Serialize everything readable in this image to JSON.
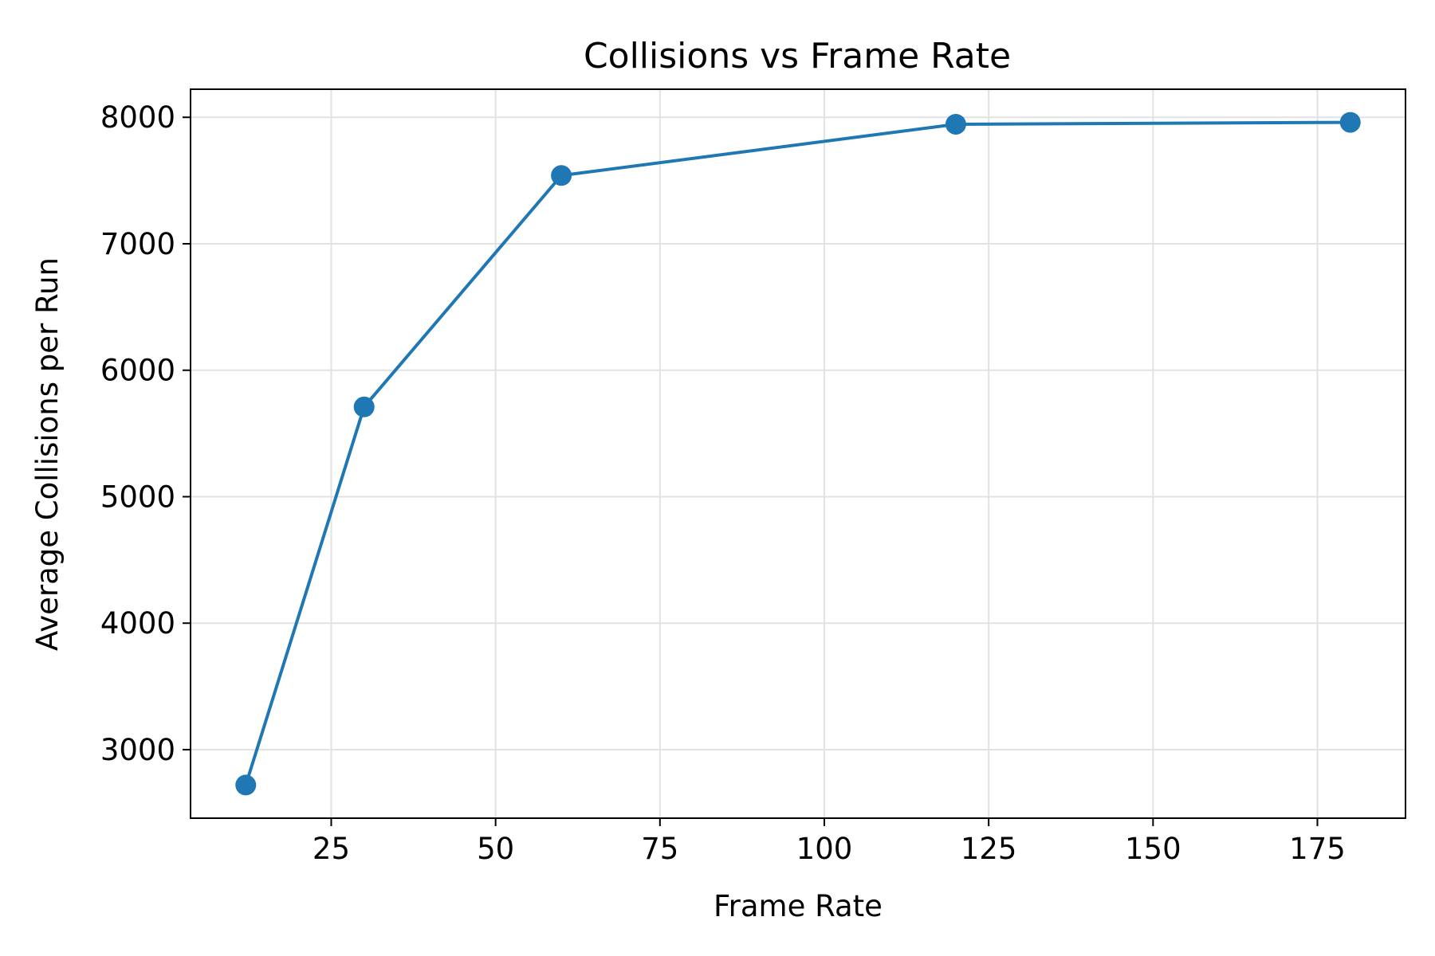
{
  "chart_data": {
    "type": "line",
    "title": "Collisions vs Frame Rate",
    "xlabel": "Frame Rate",
    "ylabel": "Average Collisions per Run",
    "x": [
      12,
      30,
      60,
      120,
      180
    ],
    "series": [
      {
        "values": [
          2720,
          5710,
          7540,
          7945,
          7960
        ],
        "color": "#1f77b4",
        "marker": "circle"
      }
    ],
    "xlim": [
      3.6,
      188.4
    ],
    "ylim": [
      2458,
      8222
    ],
    "xticks": [
      25,
      50,
      75,
      100,
      125,
      150,
      175
    ],
    "xtick_labels": [
      "25",
      "50",
      "75",
      "100",
      "125",
      "150",
      "175"
    ],
    "yticks": [
      3000,
      4000,
      5000,
      6000,
      7000,
      8000
    ],
    "ytick_labels": [
      "3000",
      "4000",
      "5000",
      "6000",
      "7000",
      "8000"
    ],
    "grid": true,
    "legend": false
  }
}
